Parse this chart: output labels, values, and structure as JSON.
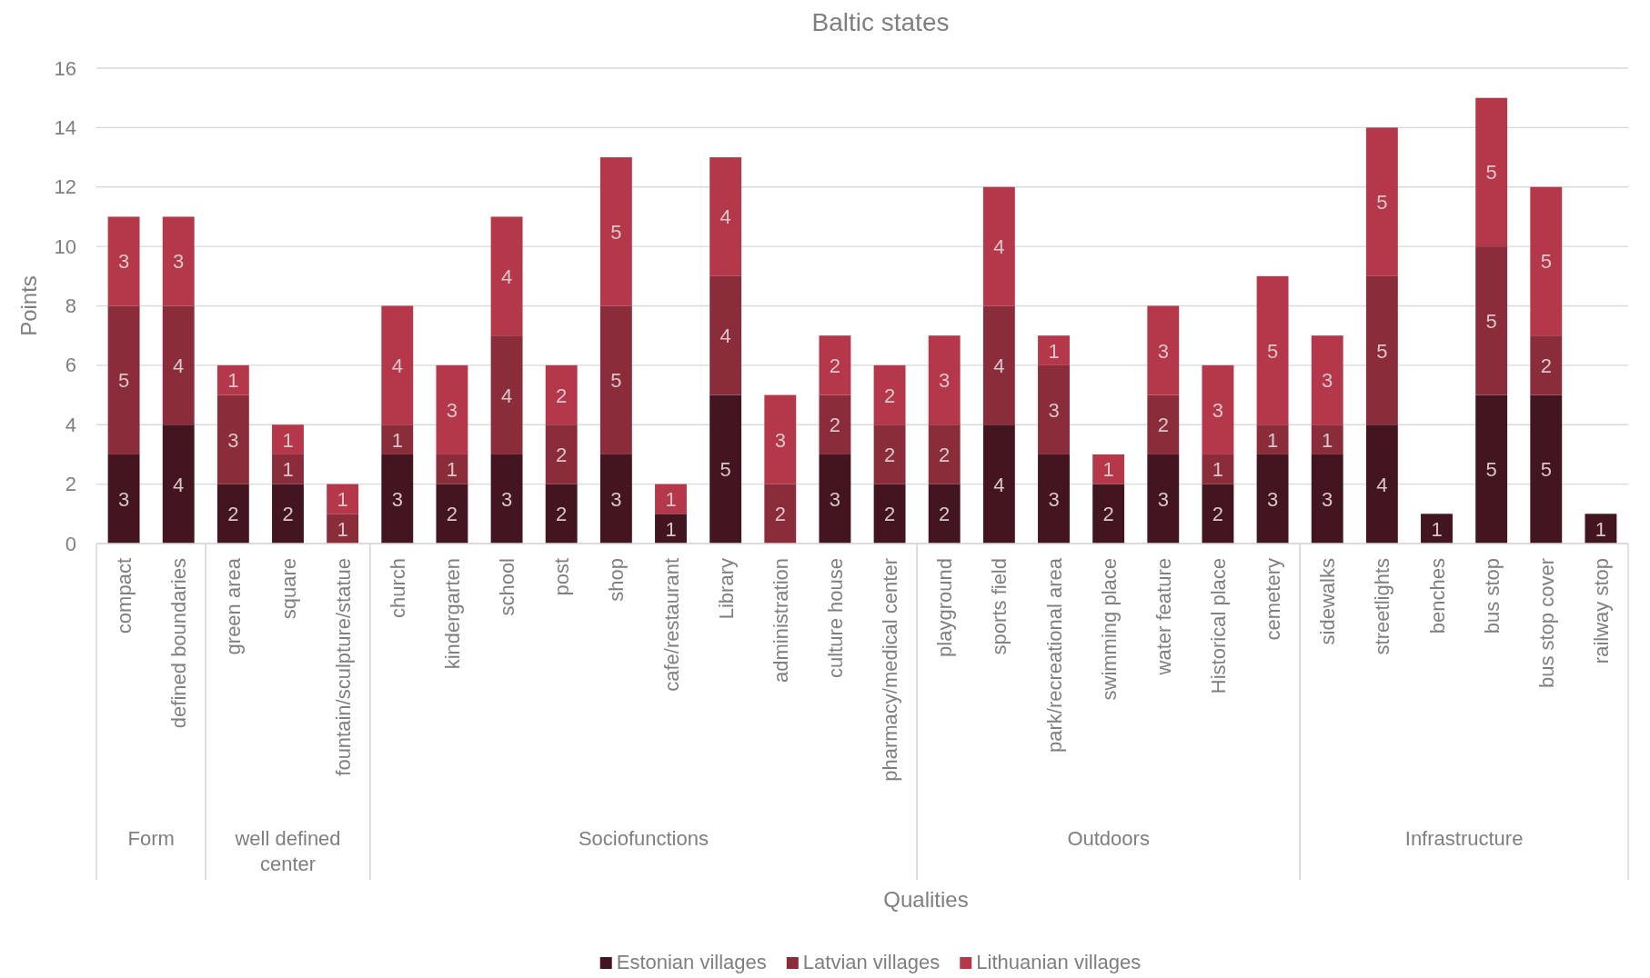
{
  "chart_data": {
    "type": "bar",
    "title": "Baltic states",
    "xlabel": "Qualities",
    "ylabel": "Points",
    "stacked": true,
    "grid": "y",
    "legend": "bottom",
    "categories": [
      "compact",
      "defined boundaries",
      "green area",
      "square",
      "fountain/sculpture/statue",
      "church",
      "kindergarten",
      "school",
      "post",
      "shop",
      "cafe/restaurant",
      "Library",
      "administration",
      "culture house",
      "pharmacy/medical center",
      "playground",
      "sports field",
      "park/recreational area",
      "swimming place",
      "water feature",
      "Historical place",
      "cemetery",
      "sidewalks",
      "streetlights",
      "benches",
      "bus stop",
      "bus stop cover",
      "railway stop"
    ],
    "series": [
      {
        "name": "Estonian villages",
        "color": "#431520",
        "values": [
          3,
          4,
          2,
          2,
          0,
          3,
          2,
          3,
          2,
          3,
          1,
          5,
          0,
          3,
          2,
          2,
          4,
          3,
          2,
          3,
          2,
          3,
          3,
          4,
          1,
          5,
          5,
          1
        ],
        "value_labels": [
          "3",
          "4",
          "2",
          "2",
          null,
          "3",
          "2",
          "3",
          "2",
          "3",
          "1",
          "5",
          null,
          "3",
          "2",
          "2",
          "4",
          "3",
          "2",
          "3",
          "2",
          "3",
          "3",
          "4",
          "1",
          "5",
          "5",
          "1"
        ]
      },
      {
        "name": "Latvian villages",
        "color": "#8b2c3a",
        "values": [
          5,
          4,
          3,
          1,
          1,
          1,
          1,
          4,
          2,
          5,
          0,
          4,
          2,
          2,
          2,
          2,
          4,
          3,
          0,
          2,
          1,
          1,
          1,
          5,
          0,
          5,
          2,
          0
        ],
        "value_labels": [
          "5",
          "4",
          "3",
          "1",
          "1",
          "1",
          "1",
          "4",
          "2",
          "5",
          null,
          "4",
          "2",
          "2",
          "2",
          "2",
          "4",
          "3",
          null,
          "2",
          "1",
          "1",
          "1",
          "5",
          null,
          "5",
          "2",
          null
        ]
      },
      {
        "name": "Lithuanian villages",
        "color": "#b5384a",
        "values": [
          3,
          3,
          1,
          1,
          1,
          4,
          3,
          4,
          2,
          5,
          1,
          4,
          3,
          2,
          2,
          3,
          4,
          1,
          1,
          3,
          3,
          5,
          3,
          5,
          0,
          5,
          5,
          0
        ],
        "value_labels": [
          "3",
          "3",
          "1",
          "1",
          "1",
          "4",
          "3",
          "4",
          "2",
          "5",
          "1",
          "4",
          "3",
          "2",
          "2",
          "3",
          "4",
          "1",
          "1",
          "3",
          "3",
          "5",
          "3",
          "5",
          null,
          "5",
          "5",
          null
        ]
      }
    ],
    "ylim": [
      0,
      16
    ],
    "yticks": [
      0,
      2,
      4,
      6,
      8,
      10,
      12,
      14,
      16
    ],
    "annotations": [
      "Form",
      "well defined center",
      "Sociofunctions",
      "Outdoors",
      "Infrastructure"
    ]
  }
}
